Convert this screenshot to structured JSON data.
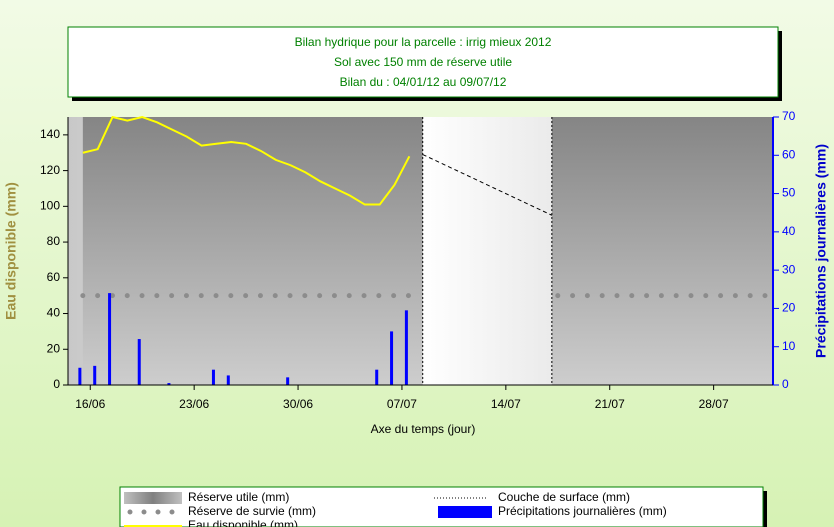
{
  "chart_data": {
    "type": "combo",
    "title": [
      "Bilan hydrique pour la parcelle : irrig mieux 2012",
      "Sol avec 150 mm de réserve utile",
      "Bilan du : 04/01/12 au 09/07/12"
    ],
    "xlabel": "Axe du temps (jour)",
    "ylabel": "Eau disponible (mm)",
    "y2label": "Précipitations journalières (mm)",
    "xlim": [
      -1.5,
      46
    ],
    "xticks": [
      {
        "value": 0,
        "label": "16/06"
      },
      {
        "value": 7,
        "label": "23/06"
      },
      {
        "value": 14,
        "label": "30/06"
      },
      {
        "value": 21,
        "label": "07/07"
      },
      {
        "value": 28,
        "label": "14/07"
      },
      {
        "value": 35,
        "label": "21/07"
      },
      {
        "value": 42,
        "label": "28/07"
      }
    ],
    "ylim": [
      0,
      150
    ],
    "yticks": [
      0,
      20,
      40,
      60,
      80,
      100,
      120,
      140
    ],
    "y2lim": [
      0,
      70
    ],
    "y2ticks": [
      0,
      10,
      20,
      30,
      40,
      50,
      60,
      70
    ],
    "series": [
      {
        "name": "Réserve utile (mm)",
        "kind": "area",
        "color": "#9a9a9a",
        "x": [
          -0.5,
          22.4,
          26,
          31.1,
          46
        ],
        "values": [
          150,
          150,
          null,
          150,
          150
        ]
      },
      {
        "name": "Couche de surface (mm)",
        "kind": "dash",
        "color": "#000000",
        "x": [
          22.4,
          31.1
        ],
        "values": [
          129,
          95
        ]
      },
      {
        "name": "Réserve de survie (mm)",
        "kind": "dots",
        "color": "#8c8c8c",
        "x": [
          -0.5,
          22,
          26,
          31.5,
          45.5
        ],
        "values": [
          50,
          50,
          null,
          50,
          50
        ]
      },
      {
        "name": "Précipitations journalières (mm)",
        "kind": "bar",
        "color": "#0000ff",
        "axis": "y2",
        "x": [
          -0.7,
          0.3,
          1.3,
          3.3,
          5.3,
          8.3,
          9.3,
          13.3,
          19.3,
          20.3,
          21.3
        ],
        "values": [
          4.5,
          5,
          24,
          12,
          0.5,
          4,
          2.5,
          2,
          4,
          14,
          19.5
        ]
      },
      {
        "name": "Eau disponible (mm)",
        "kind": "line",
        "color": "#ffff00",
        "x": [
          -0.5,
          0.5,
          1.5,
          2.5,
          3.5,
          4.5,
          5.5,
          6.5,
          7.5,
          8.5,
          9.5,
          10.5,
          11.5,
          12.5,
          13.5,
          14.5,
          15.5,
          16.5,
          17.5,
          18.5,
          19.5,
          20.5,
          21.5
        ],
        "values": [
          130,
          132,
          150,
          148,
          150,
          147,
          143,
          139,
          134,
          135,
          136,
          135,
          131,
          126,
          123,
          119,
          114,
          110,
          106,
          101,
          101,
          112,
          128
        ]
      }
    ]
  }
}
